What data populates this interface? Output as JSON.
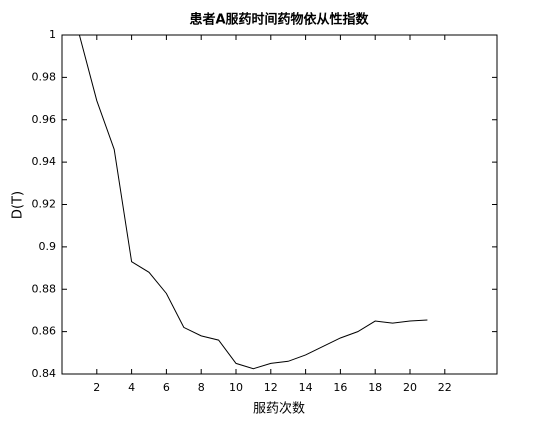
{
  "chart_data": {
    "type": "line",
    "title": "患者A服药时间药物依从性指数",
    "x_label": "服药次数",
    "y_label": "D(T)",
    "x": [
      1,
      2,
      3,
      4,
      5,
      6,
      7,
      8,
      9,
      10,
      11,
      12,
      13,
      14,
      15,
      16,
      17,
      18,
      19,
      20,
      21
    ],
    "series": [
      {
        "name": "D(T)",
        "color": "#000000",
        "values": [
          1.0,
          0.969,
          0.946,
          0.893,
          0.888,
          0.878,
          0.862,
          0.858,
          0.856,
          0.845,
          0.8425,
          0.845,
          0.846,
          0.849,
          0.853,
          0.857,
          0.86,
          0.865,
          0.864,
          0.865,
          0.8655
        ]
      }
    ],
    "xlim": [
      0,
      25
    ],
    "xticks": [
      2,
      4,
      6,
      8,
      10,
      12,
      14,
      16,
      18,
      20,
      22
    ],
    "ylim": [
      0.84,
      1
    ],
    "yticks": [
      0.84,
      0.86,
      0.88,
      0.9,
      0.92,
      0.94,
      0.96,
      0.98,
      1
    ],
    "grid": false
  }
}
